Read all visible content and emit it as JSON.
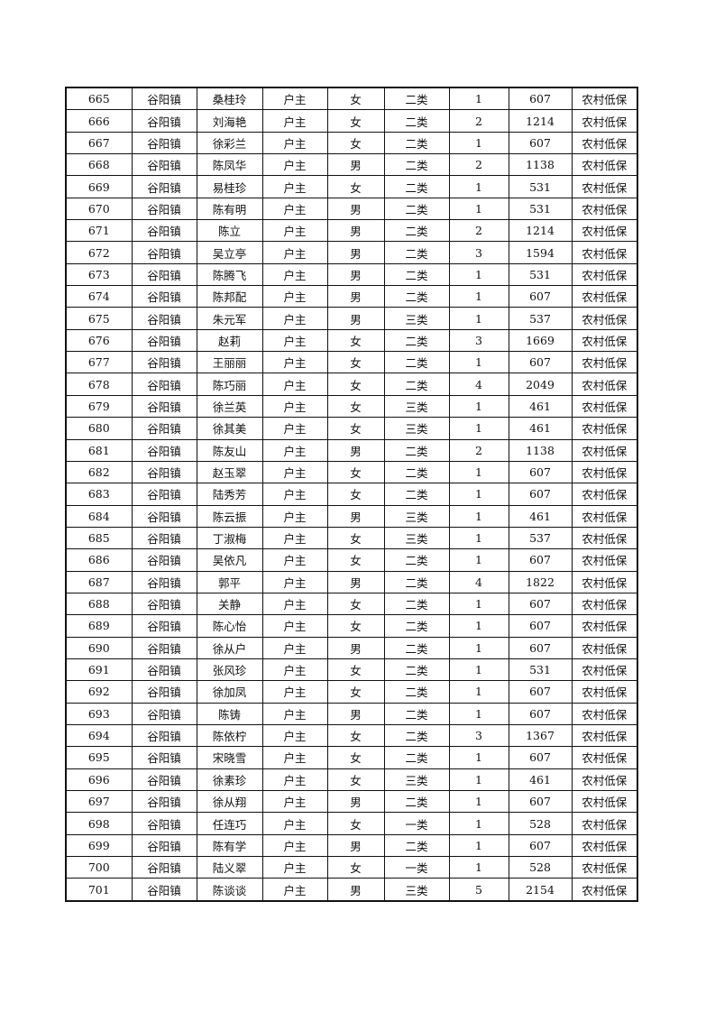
{
  "table": {
    "rows": [
      [
        "665",
        "谷阳镇",
        "桑桂玲",
        "户主",
        "女",
        "二类",
        "1",
        "607",
        "农村低保"
      ],
      [
        "666",
        "谷阳镇",
        "刘海艳",
        "户主",
        "女",
        "二类",
        "2",
        "1214",
        "农村低保"
      ],
      [
        "667",
        "谷阳镇",
        "徐彩兰",
        "户主",
        "女",
        "二类",
        "1",
        "607",
        "农村低保"
      ],
      [
        "668",
        "谷阳镇",
        "陈凤华",
        "户主",
        "男",
        "二类",
        "2",
        "1138",
        "农村低保"
      ],
      [
        "669",
        "谷阳镇",
        "易桂珍",
        "户主",
        "女",
        "二类",
        "1",
        "531",
        "农村低保"
      ],
      [
        "670",
        "谷阳镇",
        "陈有明",
        "户主",
        "男",
        "二类",
        "1",
        "531",
        "农村低保"
      ],
      [
        "671",
        "谷阳镇",
        "陈立",
        "户主",
        "男",
        "二类",
        "2",
        "1214",
        "农村低保"
      ],
      [
        "672",
        "谷阳镇",
        "吴立亭",
        "户主",
        "男",
        "二类",
        "3",
        "1594",
        "农村低保"
      ],
      [
        "673",
        "谷阳镇",
        "陈腾飞",
        "户主",
        "男",
        "二类",
        "1",
        "531",
        "农村低保"
      ],
      [
        "674",
        "谷阳镇",
        "陈邦配",
        "户主",
        "男",
        "二类",
        "1",
        "607",
        "农村低保"
      ],
      [
        "675",
        "谷阳镇",
        "朱元军",
        "户主",
        "男",
        "三类",
        "1",
        "537",
        "农村低保"
      ],
      [
        "676",
        "谷阳镇",
        "赵莉",
        "户主",
        "女",
        "二类",
        "3",
        "1669",
        "农村低保"
      ],
      [
        "677",
        "谷阳镇",
        "王丽丽",
        "户主",
        "女",
        "二类",
        "1",
        "607",
        "农村低保"
      ],
      [
        "678",
        "谷阳镇",
        "陈巧丽",
        "户主",
        "女",
        "二类",
        "4",
        "2049",
        "农村低保"
      ],
      [
        "679",
        "谷阳镇",
        "徐兰英",
        "户主",
        "女",
        "三类",
        "1",
        "461",
        "农村低保"
      ],
      [
        "680",
        "谷阳镇",
        "徐其美",
        "户主",
        "女",
        "三类",
        "1",
        "461",
        "农村低保"
      ],
      [
        "681",
        "谷阳镇",
        "陈友山",
        "户主",
        "男",
        "二类",
        "2",
        "1138",
        "农村低保"
      ],
      [
        "682",
        "谷阳镇",
        "赵玉翠",
        "户主",
        "女",
        "二类",
        "1",
        "607",
        "农村低保"
      ],
      [
        "683",
        "谷阳镇",
        "陆秀芳",
        "户主",
        "女",
        "二类",
        "1",
        "607",
        "农村低保"
      ],
      [
        "684",
        "谷阳镇",
        "陈云振",
        "户主",
        "男",
        "三类",
        "1",
        "461",
        "农村低保"
      ],
      [
        "685",
        "谷阳镇",
        "丁淑梅",
        "户主",
        "女",
        "三类",
        "1",
        "537",
        "农村低保"
      ],
      [
        "686",
        "谷阳镇",
        "吴依凡",
        "户主",
        "女",
        "二类",
        "1",
        "607",
        "农村低保"
      ],
      [
        "687",
        "谷阳镇",
        "郭平",
        "户主",
        "男",
        "二类",
        "4",
        "1822",
        "农村低保"
      ],
      [
        "688",
        "谷阳镇",
        "关静",
        "户主",
        "女",
        "二类",
        "1",
        "607",
        "农村低保"
      ],
      [
        "689",
        "谷阳镇",
        "陈心怡",
        "户主",
        "女",
        "二类",
        "1",
        "607",
        "农村低保"
      ],
      [
        "690",
        "谷阳镇",
        "徐从户",
        "户主",
        "男",
        "二类",
        "1",
        "607",
        "农村低保"
      ],
      [
        "691",
        "谷阳镇",
        "张风珍",
        "户主",
        "女",
        "二类",
        "1",
        "531",
        "农村低保"
      ],
      [
        "692",
        "谷阳镇",
        "徐加凤",
        "户主",
        "女",
        "二类",
        "1",
        "607",
        "农村低保"
      ],
      [
        "693",
        "谷阳镇",
        "陈铸",
        "户主",
        "男",
        "二类",
        "1",
        "607",
        "农村低保"
      ],
      [
        "694",
        "谷阳镇",
        "陈依柠",
        "户主",
        "女",
        "二类",
        "3",
        "1367",
        "农村低保"
      ],
      [
        "695",
        "谷阳镇",
        "宋晓雪",
        "户主",
        "女",
        "二类",
        "1",
        "607",
        "农村低保"
      ],
      [
        "696",
        "谷阳镇",
        "徐素珍",
        "户主",
        "女",
        "三类",
        "1",
        "461",
        "农村低保"
      ],
      [
        "697",
        "谷阳镇",
        "徐从翔",
        "户主",
        "男",
        "二类",
        "1",
        "607",
        "农村低保"
      ],
      [
        "698",
        "谷阳镇",
        "任连巧",
        "户主",
        "女",
        "一类",
        "1",
        "528",
        "农村低保"
      ],
      [
        "699",
        "谷阳镇",
        "陈有学",
        "户主",
        "男",
        "二类",
        "1",
        "607",
        "农村低保"
      ],
      [
        "700",
        "谷阳镇",
        "陆义翠",
        "户主",
        "女",
        "一类",
        "1",
        "528",
        "农村低保"
      ],
      [
        "701",
        "谷阳镇",
        "陈谈谈",
        "户主",
        "男",
        "三类",
        "5",
        "2154",
        "农村低保"
      ]
    ]
  }
}
